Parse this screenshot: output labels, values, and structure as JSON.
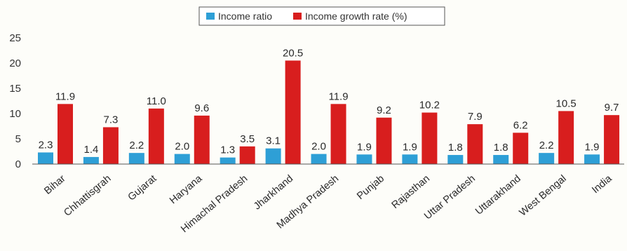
{
  "chart_data": {
    "type": "bar",
    "categories": [
      "Bihar",
      "Chhattisgrah",
      "Gujarat",
      "Haryana",
      "Himachal Pradesh",
      "Jharkhand",
      "Madhya Pradesh",
      "Punjab",
      "Rajasthan",
      "Uttar Pradesh",
      "Uttarakhand",
      "West Bengal",
      "India"
    ],
    "series": [
      {
        "name": "Income ratio",
        "color": "#2e9fd6",
        "values": [
          2.3,
          1.4,
          2.2,
          2.0,
          1.3,
          3.1,
          2.0,
          1.9,
          1.9,
          1.8,
          1.8,
          2.2,
          1.9
        ],
        "labels": [
          "2.3",
          "1.4",
          "2.2",
          "2.0",
          "1.3",
          "3.1",
          "2.0",
          "1.9",
          "1.9",
          "1.8",
          "1.8",
          "2.2",
          "1.9"
        ]
      },
      {
        "name": "Income growth rate (%)",
        "color": "#d81e1e",
        "values": [
          11.9,
          7.3,
          11.0,
          9.6,
          3.5,
          20.5,
          11.9,
          9.2,
          10.2,
          7.9,
          6.2,
          10.5,
          9.7
        ],
        "labels": [
          "11.9",
          "7.3",
          "11.0",
          "9.6",
          "3.5",
          "20.5",
          "11.9",
          "9.2",
          "10.2",
          "7.9",
          "6.2",
          "10.5",
          "9.7"
        ]
      }
    ],
    "yticks": [
      "0",
      "5",
      "10",
      "15",
      "20",
      "25"
    ],
    "ylim": [
      0,
      25
    ],
    "title": "",
    "xlabel": "",
    "ylabel": "",
    "grid": false,
    "legend": "top-center"
  }
}
